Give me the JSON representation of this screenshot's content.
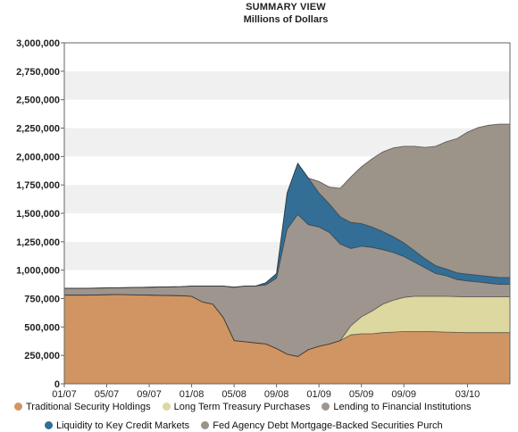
{
  "chart_data": {
    "type": "area",
    "title": "SUMMARY VIEW",
    "subtitle": "Millions of Dollars",
    "ylim": [
      0,
      3000000
    ],
    "yticks": [
      0,
      250000,
      500000,
      750000,
      1000000,
      1250000,
      1500000,
      1750000,
      2000000,
      2250000,
      2500000,
      2750000,
      3000000
    ],
    "ytick_labels": [
      "0",
      "250,000",
      "500,000",
      "750,000",
      "1,000,000",
      "1,250,000",
      "1,500,000",
      "1,750,000",
      "2,000,000",
      "2,250,000",
      "2,500,000",
      "2,750,000",
      "3,000,000"
    ],
    "xlim": [
      "2007-01",
      "2010-07"
    ],
    "xtick_labels": [
      "01/07",
      "05/07",
      "09/07",
      "01/08",
      "05/08",
      "09/08",
      "01/09",
      "05/09",
      "09/09",
      "03/10"
    ],
    "xticks": [
      "2007-01",
      "2007-05",
      "2007-09",
      "2008-01",
      "2008-05",
      "2008-09",
      "2009-01",
      "2009-05",
      "2009-09",
      "2010-03"
    ],
    "grid": "alternating horizontal bands",
    "legend_position": "bottom",
    "x": [
      "2007-01",
      "2007-03",
      "2007-06",
      "2007-09",
      "2007-12",
      "2008-01",
      "2008-02",
      "2008-03",
      "2008-04",
      "2008-05",
      "2008-06",
      "2008-07",
      "2008-08",
      "2008-09",
      "2008-10",
      "2008-11",
      "2008-12",
      "2009-01",
      "2009-02",
      "2009-03",
      "2009-04",
      "2009-05",
      "2009-06",
      "2009-07",
      "2009-08",
      "2009-09",
      "2009-10",
      "2009-11",
      "2009-12",
      "2010-01",
      "2010-02",
      "2010-03",
      "2010-04",
      "2010-05",
      "2010-06"
    ],
    "series": [
      {
        "name": "Traditional Security Holdings",
        "color": "#D09562",
        "values": [
          780000,
          780000,
          785000,
          780000,
          775000,
          770000,
          720000,
          700000,
          580000,
          380000,
          370000,
          360000,
          350000,
          310000,
          260000,
          240000,
          300000,
          330000,
          350000,
          380000,
          430000,
          440000,
          440000,
          450000,
          455000,
          460000,
          460000,
          460000,
          458000,
          455000,
          452000,
          450000,
          450000,
          450000,
          450000
        ]
      },
      {
        "name": "Long Term Treasury Purchases",
        "color": "#DDD7A0",
        "values": [
          0,
          0,
          0,
          0,
          0,
          0,
          0,
          0,
          0,
          0,
          0,
          0,
          0,
          0,
          0,
          0,
          0,
          0,
          0,
          0,
          80000,
          150000,
          200000,
          250000,
          280000,
          300000,
          310000,
          310000,
          312000,
          315000,
          315000,
          315000,
          315000,
          315000,
          315000
        ]
      },
      {
        "name": "Lending to Financial Institutions",
        "color": "#9E958E",
        "values": [
          60000,
          60000,
          60000,
          70000,
          80000,
          90000,
          140000,
          160000,
          280000,
          470000,
          490000,
          500000,
          520000,
          620000,
          1100000,
          1250000,
          1100000,
          1050000,
          980000,
          850000,
          680000,
          620000,
          560000,
          480000,
          420000,
          360000,
          300000,
          250000,
          200000,
          180000,
          150000,
          140000,
          130000,
          120000,
          110000
        ]
      },
      {
        "name": "Liquidity to Key Credit Markets",
        "color": "#336E96",
        "values": [
          0,
          0,
          0,
          0,
          0,
          0,
          0,
          0,
          0,
          0,
          0,
          0,
          20000,
          40000,
          320000,
          450000,
          410000,
          300000,
          250000,
          240000,
          230000,
          200000,
          180000,
          160000,
          140000,
          120000,
          100000,
          80000,
          70000,
          60000,
          60000,
          60000,
          60000,
          60000,
          60000
        ]
      },
      {
        "name": "Fed Agency Debt  Mortgage-Backed Securities Purch",
        "color": "#9C9389",
        "values": [
          0,
          0,
          0,
          0,
          0,
          0,
          0,
          0,
          0,
          0,
          0,
          0,
          0,
          0,
          0,
          0,
          0,
          100000,
          150000,
          250000,
          400000,
          500000,
          600000,
          700000,
          780000,
          850000,
          920000,
          980000,
          1050000,
          1120000,
          1180000,
          1250000,
          1300000,
          1330000,
          1350000
        ]
      }
    ],
    "colors": {
      "band_light": "#F0F0F0",
      "band_white": "#FFFFFF",
      "outline": "#2A2A2A"
    }
  }
}
